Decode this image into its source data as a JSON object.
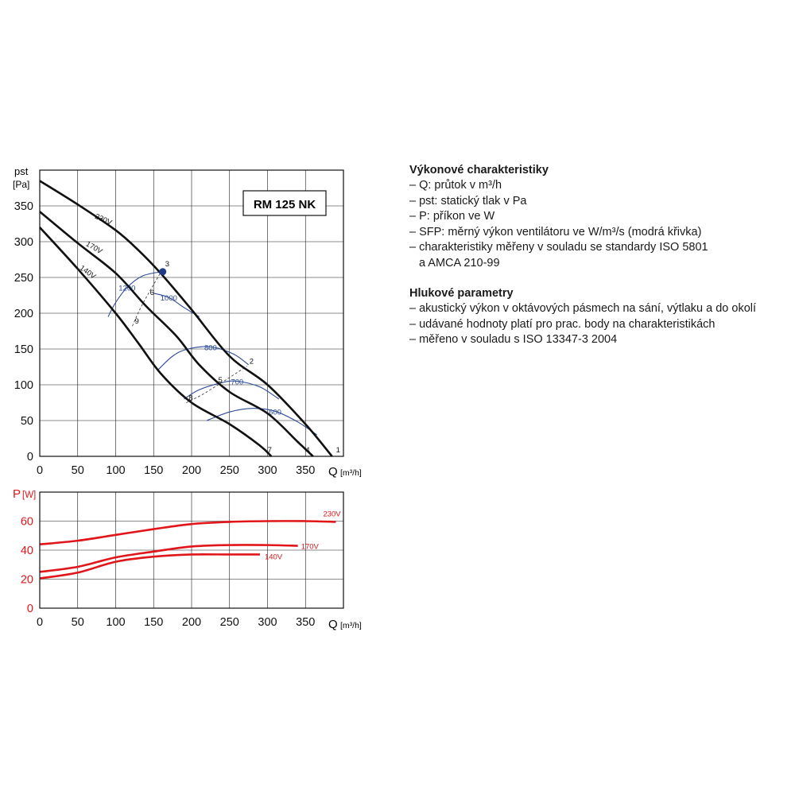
{
  "chart_data": [
    {
      "type": "line",
      "title": "RM 125 NK",
      "ylabel_top": "pst",
      "ylabel_unit": "[Pa]",
      "xlabel": "Q",
      "xlabel_unit": "[m³/h]",
      "xlim": [
        0,
        400
      ],
      "ylim": [
        0,
        400
      ],
      "x_ticks": [
        0,
        50,
        100,
        150,
        200,
        250,
        300,
        350
      ],
      "y_ticks": [
        0,
        50,
        100,
        150,
        200,
        250,
        300,
        350
      ],
      "grid": true,
      "series": [
        {
          "name": "230V",
          "color": "#111111",
          "points": [
            [
              0,
              385
            ],
            [
              50,
              352
            ],
            [
              100,
              316
            ],
            [
              130,
              288
            ],
            [
              160,
              255
            ],
            [
              200,
              205
            ],
            [
              250,
              140
            ],
            [
              300,
              100
            ],
            [
              350,
              45
            ],
            [
              385,
              0
            ]
          ]
        },
        {
          "name": "170V",
          "color": "#111111",
          "points": [
            [
              0,
              342
            ],
            [
              50,
              298
            ],
            [
              100,
              256
            ],
            [
              140,
              210
            ],
            [
              180,
              168
            ],
            [
              210,
              128
            ],
            [
              250,
              90
            ],
            [
              300,
              60
            ],
            [
              340,
              20
            ],
            [
              360,
              0
            ]
          ]
        },
        {
          "name": "140V",
          "color": "#111111",
          "points": [
            [
              0,
              320
            ],
            [
              50,
              262
            ],
            [
              100,
              200
            ],
            [
              130,
              158
            ],
            [
              160,
              115
            ],
            [
              200,
              75
            ],
            [
              250,
              45
            ],
            [
              290,
              15
            ],
            [
              305,
              0
            ]
          ]
        }
      ],
      "sfp_curves": [
        {
          "label": "1200",
          "color": "#2c4a9a",
          "points": [
            [
              90,
              195
            ],
            [
              100,
              215
            ],
            [
              115,
              236
            ],
            [
              135,
              252
            ],
            [
              160,
              258
            ]
          ]
        },
        {
          "label": "1000",
          "color": "#2c4a9a",
          "points": [
            [
              150,
              228
            ],
            [
              170,
              222
            ],
            [
              190,
              208
            ],
            [
              210,
              195
            ]
          ]
        },
        {
          "label": "800",
          "color": "#2c4a9a",
          "points": [
            [
              155,
              120
            ],
            [
              175,
              140
            ],
            [
              195,
              150
            ],
            [
              225,
              153
            ],
            [
              255,
              143
            ],
            [
              275,
              128
            ]
          ]
        },
        {
          "label": "700",
          "color": "#2c4a9a",
          "points": [
            [
              190,
              80
            ],
            [
              210,
              93
            ],
            [
              240,
              103
            ],
            [
              260,
              105
            ],
            [
              290,
              97
            ],
            [
              315,
              80
            ]
          ]
        },
        {
          "label": "600",
          "color": "#2c4a9a",
          "points": [
            [
              220,
              50
            ],
            [
              250,
              62
            ],
            [
              280,
              67
            ],
            [
              310,
              63
            ],
            [
              340,
              48
            ],
            [
              365,
              30
            ]
          ]
        }
      ],
      "operating_points": [
        {
          "label": "1",
          "q": 387,
          "p": 2
        },
        {
          "label": "2",
          "q": 273,
          "p": 126
        },
        {
          "label": "3",
          "q": 162,
          "p": 262
        },
        {
          "label": "4",
          "q": 347,
          "p": 2
        },
        {
          "label": "5",
          "q": 232,
          "p": 100
        },
        {
          "label": "6",
          "q": 142,
          "p": 222
        },
        {
          "label": "7",
          "q": 297,
          "p": 2
        },
        {
          "label": "8",
          "q": 193,
          "p": 75
        },
        {
          "label": "9",
          "q": 122,
          "p": 182
        }
      ],
      "dashed_lines": [
        {
          "points": [
            [
              122,
              182
            ],
            [
              135,
              212
            ],
            [
              162,
              262
            ]
          ]
        },
        {
          "points": [
            [
              193,
              75
            ],
            [
              220,
              90
            ],
            [
              273,
              126
            ]
          ]
        }
      ],
      "highlight_point": {
        "q": 162,
        "p": 258,
        "color": "#1f3a8a"
      }
    },
    {
      "type": "line",
      "ylabel_top": "P",
      "ylabel_unit": "[W]",
      "xlabel": "Q",
      "xlabel_unit": "[m³/h]",
      "xlim": [
        0,
        400
      ],
      "ylim": [
        0,
        80
      ],
      "x_ticks": [
        0,
        50,
        100,
        150,
        200,
        250,
        300,
        350
      ],
      "y_ticks": [
        0,
        20,
        40,
        60
      ],
      "grid": true,
      "series": [
        {
          "name": "230V",
          "color": "#e0161a",
          "points": [
            [
              0,
              44
            ],
            [
              50,
              46.5
            ],
            [
              100,
              50.5
            ],
            [
              150,
              54.5
            ],
            [
              200,
              58
            ],
            [
              250,
              59.5
            ],
            [
              300,
              60
            ],
            [
              350,
              60
            ],
            [
              390,
              59.5
            ]
          ]
        },
        {
          "name": "170V",
          "color": "#e0161a",
          "points": [
            [
              0,
              25
            ],
            [
              50,
              28.5
            ],
            [
              100,
              35
            ],
            [
              150,
              39
            ],
            [
              200,
              42.5
            ],
            [
              250,
              43.5
            ],
            [
              300,
              43.5
            ],
            [
              340,
              43
            ]
          ]
        },
        {
          "name": "140V",
          "color": "#e0161a",
          "points": [
            [
              0,
              20.5
            ],
            [
              50,
              24.5
            ],
            [
              100,
              32
            ],
            [
              150,
              35.5
            ],
            [
              200,
              37
            ],
            [
              250,
              37
            ],
            [
              290,
              37
            ]
          ]
        }
      ]
    }
  ],
  "panel": {
    "section1_title": "Výkonové charakteristiky",
    "s1_items": [
      "– Q: průtok v m³/h",
      "– pst: statický tlak v Pa",
      "– P: příkon ve W",
      "– SFP: měrný výkon ventilátoru ve W/m³/s (modrá křivka)",
      "– charakteristiky měřeny v souladu se standardy ISO 5801",
      "a AMCA 210-99"
    ],
    "section2_title": "Hlukové parametry",
    "s2_items": [
      "– akustický výkon v oktávových pásmech na sání, výtlaku a do okolí",
      "– udávané hodnoty platí pro prac. body na charakteristikách",
      "– měřeno v souladu s ISO 13347-3 2004"
    ]
  }
}
